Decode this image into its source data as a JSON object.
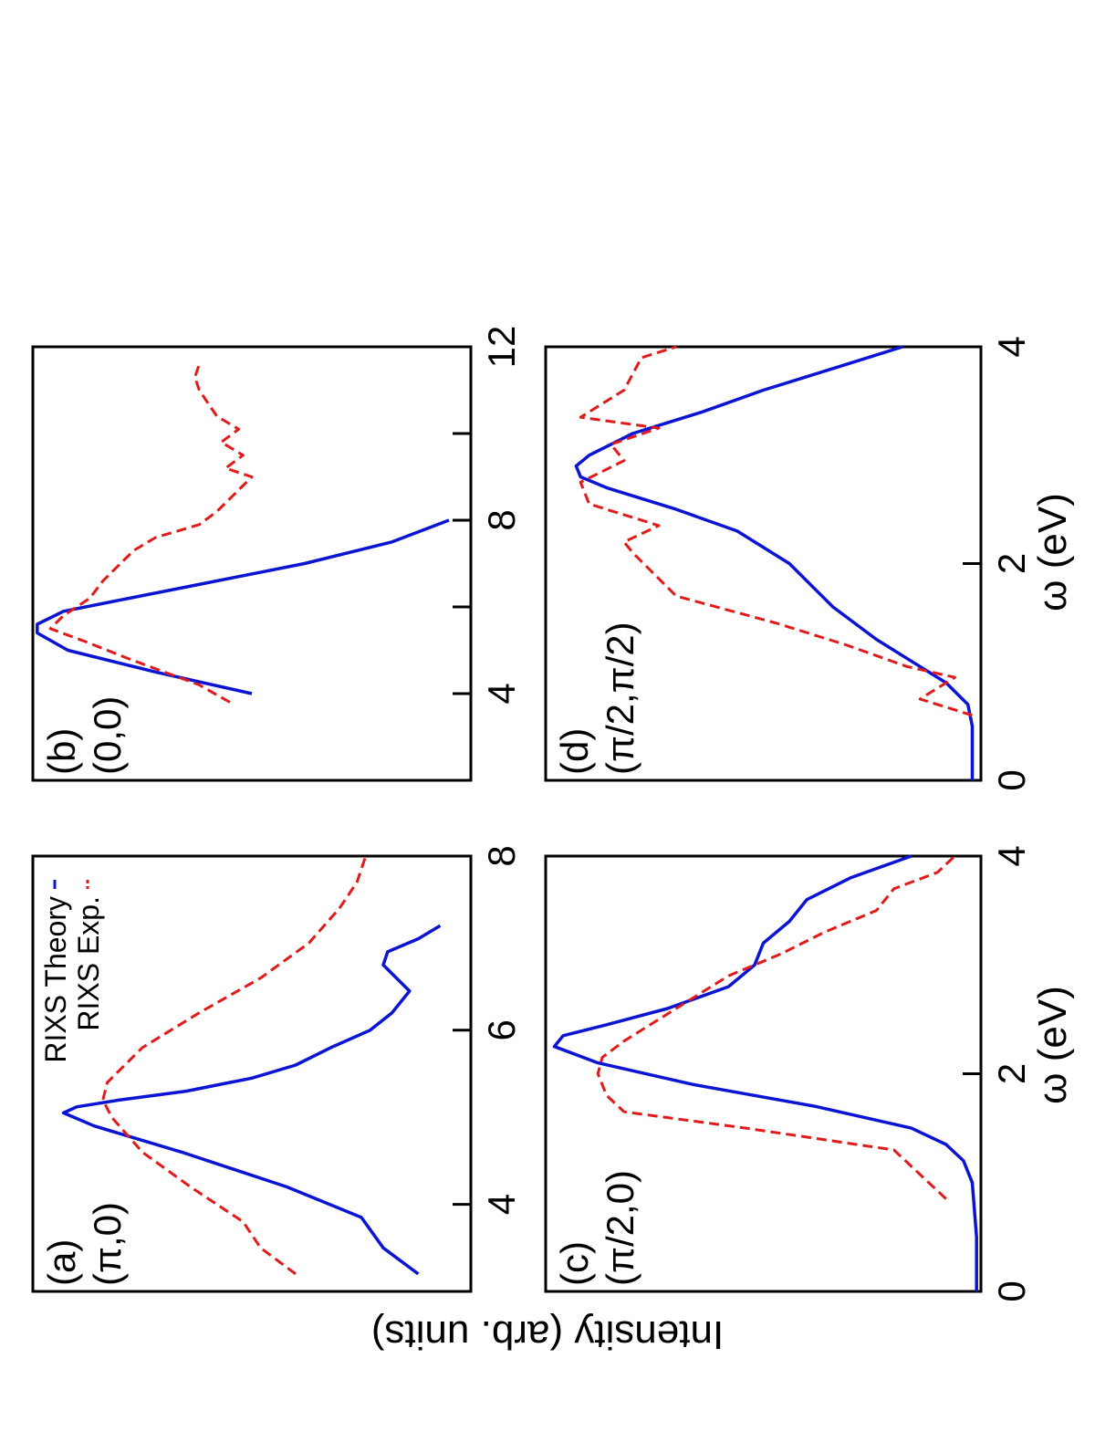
{
  "figure": {
    "ylabel": "Intensity (arb. units)",
    "xlabel": "ω (eV)",
    "legend": [
      {
        "label": "RIXS Theory",
        "style": "solid",
        "color": "#0a14d2"
      },
      {
        "label": "RIXS Exp.",
        "style": "dashed",
        "color": "#e01b1b"
      }
    ]
  },
  "colors": {
    "theory": "#0a14d2",
    "exp": "#e01b1b"
  },
  "chart_data": [
    {
      "id": "a",
      "type": "line",
      "panel_label": "(a)",
      "q_label": "(π,0)",
      "xlim": [
        3.0,
        8.0
      ],
      "ylim": [
        0,
        1
      ],
      "xticks": [
        4,
        6,
        8
      ],
      "xticklabels": [
        "4",
        "6",
        "8"
      ],
      "show_legend": true,
      "series": [
        {
          "name": "RIXS Theory",
          "style": "solid",
          "x": [
            3.2,
            3.5,
            3.85,
            4.2,
            4.6,
            4.9,
            5.05,
            5.12,
            5.2,
            5.3,
            5.45,
            5.6,
            5.8,
            6.0,
            6.2,
            6.45,
            6.6,
            6.75,
            6.9,
            7.05,
            7.2
          ],
          "y": [
            0.12,
            0.2,
            0.25,
            0.42,
            0.66,
            0.86,
            0.93,
            0.9,
            0.8,
            0.65,
            0.5,
            0.4,
            0.32,
            0.23,
            0.18,
            0.14,
            0.17,
            0.2,
            0.19,
            0.12,
            0.07
          ]
        },
        {
          "name": "RIXS Exp.",
          "style": "dashed",
          "x": [
            3.2,
            3.5,
            3.8,
            4.2,
            4.6,
            5.0,
            5.2,
            5.4,
            5.8,
            6.2,
            6.6,
            7.0,
            7.4,
            7.7,
            8.0
          ],
          "y": [
            0.4,
            0.48,
            0.52,
            0.64,
            0.75,
            0.82,
            0.84,
            0.83,
            0.75,
            0.62,
            0.48,
            0.37,
            0.3,
            0.26,
            0.24
          ]
        }
      ]
    },
    {
      "id": "b",
      "type": "line",
      "panel_label": "(b)",
      "q_label": "(0,0)",
      "xlim": [
        2.0,
        12.0
      ],
      "ylim": [
        0,
        1
      ],
      "xticks": [
        4,
        6,
        8,
        10,
        12
      ],
      "xticklabels": [
        "4",
        "",
        "8",
        "",
        "12"
      ],
      "show_legend": false,
      "series": [
        {
          "name": "RIXS Theory",
          "style": "solid",
          "x": [
            4.0,
            4.5,
            5.0,
            5.4,
            5.6,
            5.9,
            6.2,
            6.6,
            7.0,
            7.5,
            8.0
          ],
          "y": [
            0.5,
            0.72,
            0.92,
            0.99,
            0.99,
            0.93,
            0.78,
            0.58,
            0.38,
            0.18,
            0.05
          ]
        },
        {
          "name": "RIXS Exp.",
          "style": "dashed",
          "x": [
            3.8,
            4.2,
            4.5,
            4.8,
            5.2,
            5.5,
            5.8,
            6.2,
            6.6,
            7.0,
            7.3,
            7.6,
            7.9,
            8.2,
            8.5,
            8.8,
            9.0,
            9.2,
            9.5,
            9.8,
            10.1,
            10.4,
            10.7,
            11.0,
            11.3,
            11.6
          ],
          "y": [
            0.55,
            0.62,
            0.7,
            0.78,
            0.88,
            0.96,
            0.93,
            0.87,
            0.84,
            0.8,
            0.77,
            0.72,
            0.62,
            0.58,
            0.55,
            0.52,
            0.5,
            0.56,
            0.52,
            0.57,
            0.53,
            0.58,
            0.6,
            0.62,
            0.63,
            0.62
          ]
        }
      ]
    },
    {
      "id": "c",
      "type": "line",
      "panel_label": "(c)",
      "q_label": "(π/2,0)",
      "xlim": [
        0.0,
        4.0
      ],
      "ylim": [
        0,
        1
      ],
      "xticks": [
        0,
        2,
        4
      ],
      "xticklabels": [
        "0",
        "2",
        "4"
      ],
      "show_legend": false,
      "series": [
        {
          "name": "RIXS Theory",
          "style": "solid",
          "x": [
            0.0,
            0.5,
            1.0,
            1.2,
            1.35,
            1.5,
            1.7,
            1.9,
            2.1,
            2.25,
            2.35,
            2.45,
            2.6,
            2.8,
            3.0,
            3.2,
            3.4,
            3.6,
            3.8,
            4.0
          ],
          "y": [
            0.01,
            0.01,
            0.02,
            0.04,
            0.08,
            0.16,
            0.38,
            0.66,
            0.88,
            0.98,
            0.96,
            0.86,
            0.72,
            0.58,
            0.52,
            0.5,
            0.44,
            0.4,
            0.3,
            0.16
          ]
        },
        {
          "name": "RIXS Exp.",
          "style": "dashed",
          "x": [
            0.85,
            1.0,
            1.15,
            1.3,
            1.5,
            1.65,
            1.8,
            2.0,
            2.15,
            2.3,
            2.5,
            2.7,
            2.9,
            3.1,
            3.3,
            3.5,
            3.7,
            3.85,
            4.0
          ],
          "y": [
            0.08,
            0.12,
            0.16,
            0.2,
            0.54,
            0.82,
            0.86,
            0.88,
            0.87,
            0.82,
            0.74,
            0.66,
            0.58,
            0.46,
            0.36,
            0.24,
            0.2,
            0.1,
            0.06
          ]
        }
      ]
    },
    {
      "id": "d",
      "type": "line",
      "panel_label": "(d)",
      "q_label": "(π/2,π/2)",
      "xlim": [
        0.0,
        4.0
      ],
      "ylim": [
        0,
        1
      ],
      "xticks": [
        0,
        2,
        4
      ],
      "xticklabels": [
        "0",
        "2",
        "4"
      ],
      "show_legend": false,
      "series": [
        {
          "name": "RIXS Theory",
          "style": "solid",
          "x": [
            0.0,
            0.5,
            0.7,
            0.9,
            1.05,
            1.3,
            1.6,
            2.0,
            2.3,
            2.5,
            2.7,
            2.8,
            2.9,
            3.0,
            3.2,
            3.4,
            3.6,
            3.8,
            4.0
          ],
          "y": [
            0.02,
            0.02,
            0.03,
            0.08,
            0.14,
            0.24,
            0.34,
            0.44,
            0.56,
            0.7,
            0.86,
            0.92,
            0.93,
            0.9,
            0.8,
            0.64,
            0.5,
            0.34,
            0.18
          ]
        },
        {
          "name": "RIXS Exp.",
          "style": "dashed",
          "x": [
            0.6,
            0.75,
            0.95,
            1.05,
            1.25,
            1.45,
            1.7,
            1.9,
            2.1,
            2.2,
            2.35,
            2.55,
            2.75,
            2.95,
            3.1,
            3.25,
            3.35,
            3.6,
            3.9,
            4.0
          ],
          "y": [
            0.02,
            0.14,
            0.06,
            0.17,
            0.31,
            0.47,
            0.7,
            0.75,
            0.8,
            0.82,
            0.74,
            0.9,
            0.92,
            0.82,
            0.85,
            0.74,
            0.92,
            0.82,
            0.78,
            0.7
          ]
        }
      ]
    }
  ]
}
